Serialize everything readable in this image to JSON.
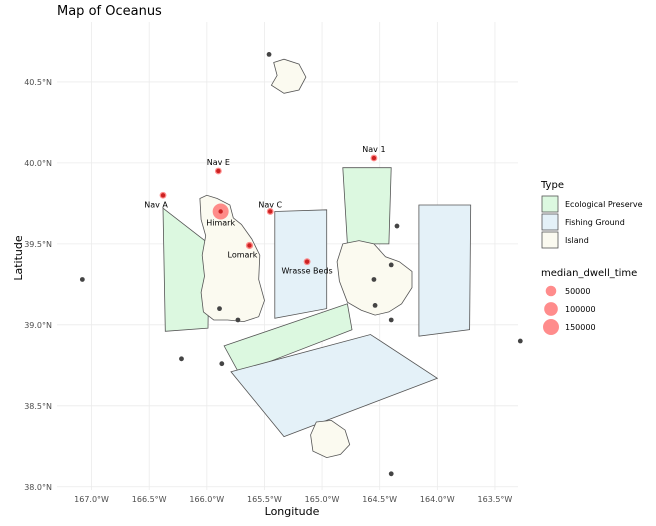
{
  "chart_data": {
    "type": "map",
    "title": "Map of Oceanus",
    "xlabel": "Longitude",
    "ylabel": "Latitude",
    "xlim": [
      -167.3,
      -163.3
    ],
    "ylim": [
      37.98,
      40.87
    ],
    "grid": true,
    "x_ticks": [
      -167.0,
      -166.5,
      -166.0,
      -165.5,
      -165.0,
      -164.5,
      -164.0,
      -163.5
    ],
    "x_tick_labels": [
      "167.0°W",
      "166.5°W",
      "166.0°W",
      "165.5°W",
      "165.0°W",
      "164.5°W",
      "164.0°W",
      "163.5°W"
    ],
    "y_ticks": [
      38.0,
      38.5,
      39.0,
      39.5,
      40.0,
      40.5
    ],
    "y_tick_labels": [
      "38.0°N",
      "38.5°N",
      "39.0°N",
      "39.5°N",
      "40.0°N",
      "40.5°N"
    ],
    "regions": [
      {
        "type": "Ecological Preserve",
        "coords": [
          [
            -166.38,
            39.72
          ],
          [
            -165.98,
            39.5
          ],
          [
            -165.99,
            38.98
          ],
          [
            -166.36,
            38.96
          ]
        ]
      },
      {
        "type": "Ecological Preserve",
        "coords": [
          [
            -164.82,
            39.97
          ],
          [
            -164.4,
            39.97
          ],
          [
            -164.42,
            39.5
          ],
          [
            -164.78,
            39.5
          ]
        ]
      },
      {
        "type": "Ecological Preserve",
        "coords": [
          [
            -165.85,
            38.87
          ],
          [
            -164.78,
            39.13
          ],
          [
            -164.74,
            38.97
          ],
          [
            -165.72,
            38.7
          ]
        ]
      },
      {
        "type": "Fishing Ground",
        "coords": [
          [
            -165.41,
            39.7
          ],
          [
            -164.96,
            39.71
          ],
          [
            -164.96,
            39.1
          ],
          [
            -165.41,
            39.04
          ]
        ]
      },
      {
        "type": "Fishing Ground",
        "coords": [
          [
            -164.16,
            39.74
          ],
          [
            -163.71,
            39.74
          ],
          [
            -163.72,
            38.97
          ],
          [
            -164.16,
            38.93
          ]
        ]
      },
      {
        "type": "Fishing Ground",
        "coords": [
          [
            -165.79,
            38.71
          ],
          [
            -164.58,
            38.94
          ],
          [
            -164.0,
            38.67
          ],
          [
            -165.33,
            38.31
          ]
        ]
      },
      {
        "type": "Island",
        "coords": [
          [
            -166.06,
            39.78
          ],
          [
            -166.0,
            39.8
          ],
          [
            -165.91,
            39.78
          ],
          [
            -165.8,
            39.74
          ],
          [
            -165.77,
            39.66
          ],
          [
            -165.7,
            39.62
          ],
          [
            -165.61,
            39.53
          ],
          [
            -165.54,
            39.43
          ],
          [
            -165.55,
            39.28
          ],
          [
            -165.5,
            39.15
          ],
          [
            -165.55,
            39.05
          ],
          [
            -165.68,
            39.02
          ],
          [
            -165.82,
            39.03
          ],
          [
            -165.94,
            39.03
          ],
          [
            -166.03,
            39.08
          ],
          [
            -166.05,
            39.2
          ],
          [
            -166.02,
            39.3
          ],
          [
            -166.04,
            39.43
          ],
          [
            -166.01,
            39.55
          ],
          [
            -166.05,
            39.65
          ]
        ]
      },
      {
        "type": "Island",
        "coords": [
          [
            -164.82,
            39.5
          ],
          [
            -164.68,
            39.52
          ],
          [
            -164.55,
            39.5
          ],
          [
            -164.45,
            39.42
          ],
          [
            -164.33,
            39.39
          ],
          [
            -164.22,
            39.33
          ],
          [
            -164.22,
            39.23
          ],
          [
            -164.31,
            39.13
          ],
          [
            -164.42,
            39.08
          ],
          [
            -164.54,
            39.06
          ],
          [
            -164.66,
            39.09
          ],
          [
            -164.78,
            39.14
          ],
          [
            -164.85,
            39.27
          ],
          [
            -164.87,
            39.39
          ]
        ]
      },
      {
        "type": "Island",
        "coords": [
          [
            -165.42,
            40.62
          ],
          [
            -165.33,
            40.64
          ],
          [
            -165.2,
            40.61
          ],
          [
            -165.14,
            40.53
          ],
          [
            -165.2,
            40.45
          ],
          [
            -165.33,
            40.43
          ],
          [
            -165.44,
            40.48
          ],
          [
            -165.39,
            40.54
          ]
        ]
      },
      {
        "type": "Island",
        "coords": [
          [
            -165.05,
            38.4
          ],
          [
            -164.92,
            38.41
          ],
          [
            -164.8,
            38.35
          ],
          [
            -164.76,
            38.26
          ],
          [
            -164.84,
            38.2
          ],
          [
            -164.96,
            38.18
          ],
          [
            -165.08,
            38.22
          ],
          [
            -165.1,
            38.32
          ]
        ]
      }
    ],
    "dwell_points": [
      {
        "name": "Nav 1",
        "lon": -164.55,
        "lat": 40.03,
        "median_dwell_time": 12000
      },
      {
        "name": "Nav E",
        "lon": -165.9,
        "lat": 39.95,
        "median_dwell_time": 12000
      },
      {
        "name": "Nav A",
        "lon": -166.38,
        "lat": 39.8,
        "median_dwell_time": 12000
      },
      {
        "name": "Nav C",
        "lon": -165.45,
        "lat": 39.7,
        "median_dwell_time": 12000
      },
      {
        "name": "Himark",
        "lon": -165.88,
        "lat": 39.7,
        "median_dwell_time": 150000
      },
      {
        "name": "Lomark",
        "lon": -165.63,
        "lat": 39.49,
        "median_dwell_time": 15000
      },
      {
        "name": "Wrasse Beds",
        "lon": -165.13,
        "lat": 39.39,
        "median_dwell_time": 12000
      }
    ],
    "other_points": [
      {
        "lon": -165.46,
        "lat": 40.67
      },
      {
        "lon": -164.35,
        "lat": 39.61
      },
      {
        "lon": -164.4,
        "lat": 39.37
      },
      {
        "lon": -164.55,
        "lat": 39.28
      },
      {
        "lon": -164.54,
        "lat": 39.12
      },
      {
        "lon": -164.4,
        "lat": 39.03
      },
      {
        "lon": -167.08,
        "lat": 39.28
      },
      {
        "lon": -165.89,
        "lat": 39.1
      },
      {
        "lon": -165.73,
        "lat": 39.03
      },
      {
        "lon": -166.22,
        "lat": 38.79
      },
      {
        "lon": -165.87,
        "lat": 38.76
      },
      {
        "lon": -163.28,
        "lat": 38.9
      },
      {
        "lon": -164.4,
        "lat": 38.08
      }
    ],
    "legend_type": {
      "title": "Type",
      "entries": [
        {
          "label": "Ecological Preserve",
          "fill": "#dcf8e0"
        },
        {
          "label": "Fishing Ground",
          "fill": "#e4f1f8"
        },
        {
          "label": "Island",
          "fill": "#fbfaf0"
        }
      ]
    },
    "legend_size": {
      "title": "median_dwell_time",
      "entries": [
        {
          "label": "50000",
          "value": 50000
        },
        {
          "label": "100000",
          "value": 100000
        },
        {
          "label": "150000",
          "value": 150000
        }
      ]
    },
    "colors": {
      "dwell_point": "#ff6666",
      "nav_point": "#cc2222",
      "other_point": "#444444",
      "outline": "#555555",
      "grid": "#ebebeb"
    }
  }
}
